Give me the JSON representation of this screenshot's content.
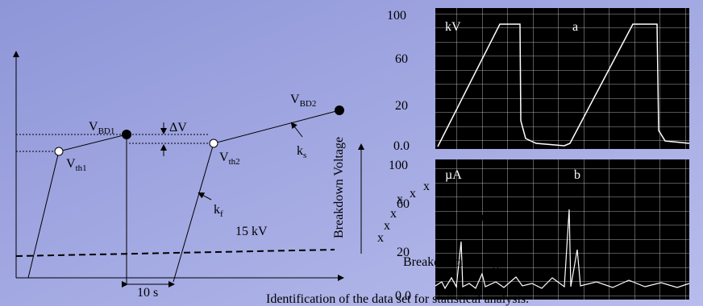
{
  "diagram": {
    "scope_a": {
      "unit": "kV",
      "label": "a",
      "ticks": [
        "100",
        "60",
        "20",
        "0.0"
      ]
    },
    "scope_b": {
      "unit": "µA",
      "label": "b",
      "ticks": [
        "100",
        "60",
        "20",
        "0.0"
      ]
    },
    "labels": {
      "v_bd1": {
        "main": "V",
        "sub": "BD1"
      },
      "v_bd2": {
        "main": "V",
        "sub": "BD2"
      },
      "v_th1": {
        "main": "V",
        "sub": "th1"
      },
      "v_th2": {
        "main": "V",
        "sub": "th2"
      },
      "k_s": {
        "main": "k",
        "sub": "s"
      },
      "k_f": {
        "main": "k",
        "sub": "f"
      },
      "delta_v": "ΔV",
      "threshold": "15 kV",
      "interval": "10 s"
    },
    "overlay": {
      "axis_title": "Breakdown Voltage",
      "series_label": "Data set",
      "x_title": "Breakdown Voltage"
    },
    "caption": "Identification of the data set for statistical analysis."
  }
}
